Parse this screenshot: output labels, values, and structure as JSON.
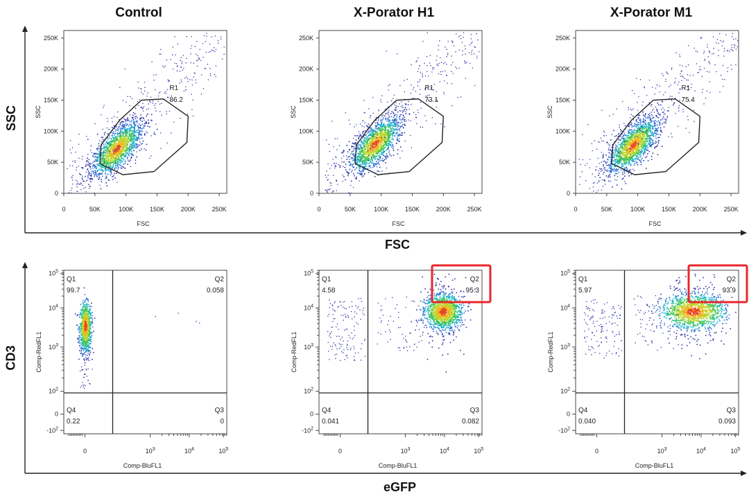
{
  "figure": {
    "columns": [
      "Control",
      "X-Porator H1",
      "X-Porator M1"
    ],
    "row1_y_label": "SSC",
    "row1_x_label": "FSC",
    "row2_y_label": "CD3",
    "row2_x_label": "eGFP"
  },
  "chart_data": [
    {
      "type": "scatter",
      "title": "Control",
      "xlabel": "FSC",
      "ylabel": "SSC",
      "xlim": [
        0,
        262144
      ],
      "ylim": [
        0,
        262144
      ],
      "xticks": [
        "0",
        "50K",
        "100K",
        "150K",
        "200K",
        "250K"
      ],
      "yticks": [
        "0",
        "50K",
        "100K",
        "150K",
        "200K",
        "250K"
      ],
      "gate": {
        "name": "R1",
        "percent": "86.2"
      },
      "density_center": [
        85000,
        72000
      ],
      "highlight": false
    },
    {
      "type": "scatter",
      "title": "X-Porator H1",
      "xlabel": "FSC",
      "ylabel": "SSC",
      "xlim": [
        0,
        262144
      ],
      "ylim": [
        0,
        262144
      ],
      "xticks": [
        "0",
        "50K",
        "100K",
        "150K",
        "200K",
        "250K"
      ],
      "yticks": [
        "0",
        "50K",
        "100K",
        "150K",
        "200K",
        "250K"
      ],
      "gate": {
        "name": "R1",
        "percent": "73.1"
      },
      "density_center": [
        90000,
        80000
      ],
      "highlight": false
    },
    {
      "type": "scatter",
      "title": "X-Porator M1",
      "xlabel": "FSC",
      "ylabel": "SSC",
      "xlim": [
        0,
        262144
      ],
      "ylim": [
        0,
        262144
      ],
      "xticks": [
        "0",
        "50K",
        "100K",
        "150K",
        "200K",
        "250K"
      ],
      "yticks": [
        "0",
        "50K",
        "100K",
        "150K",
        "200K",
        "250K"
      ],
      "gate": {
        "name": "R1",
        "percent": "75.4"
      },
      "density_center": [
        92000,
        78000
      ],
      "highlight": false
    },
    {
      "type": "scatter",
      "title": "Control",
      "xlabel": "Comp-BluFL1",
      "ylabel": "Comp-RedFL1",
      "scale": "biexponential",
      "xticks": [
        "0",
        "10^3",
        "10^4",
        "10^5"
      ],
      "yticks": [
        "-10^2",
        "0",
        "10^2",
        "10^3",
        "10^4",
        "10^5"
      ],
      "quadrants": {
        "Q1": "99.7",
        "Q2": "0.058",
        "Q3": "0",
        "Q4": "0.22"
      },
      "highlight_Q2": false
    },
    {
      "type": "scatter",
      "title": "X-Porator H1",
      "xlabel": "Comp-BluFL1",
      "ylabel": "Comp-RedFL1",
      "scale": "biexponential",
      "xticks": [
        "0",
        "10^3",
        "10^4",
        "10^5"
      ],
      "yticks": [
        "-10^2",
        "0",
        "10^2",
        "10^3",
        "10^4",
        "10^5"
      ],
      "quadrants": {
        "Q1": "4.58",
        "Q2": "95.3",
        "Q3": "0.082",
        "Q4": "0.041"
      },
      "highlight_Q2": true,
      "highlight_color": "#e8262b"
    },
    {
      "type": "scatter",
      "title": "X-Porator M1",
      "xlabel": "Comp-BluFL1",
      "ylabel": "Comp-RedFL1",
      "scale": "biexponential",
      "xticks": [
        "0",
        "10^3",
        "10^4",
        "10^5"
      ],
      "yticks": [
        "-10^2",
        "0",
        "10^2",
        "10^3",
        "10^4",
        "10^5"
      ],
      "quadrants": {
        "Q1": "5.97",
        "Q2": "93.9",
        "Q3": "0.093",
        "Q4": "0.040"
      },
      "highlight_Q2": true,
      "highlight_color": "#e8262b"
    }
  ]
}
